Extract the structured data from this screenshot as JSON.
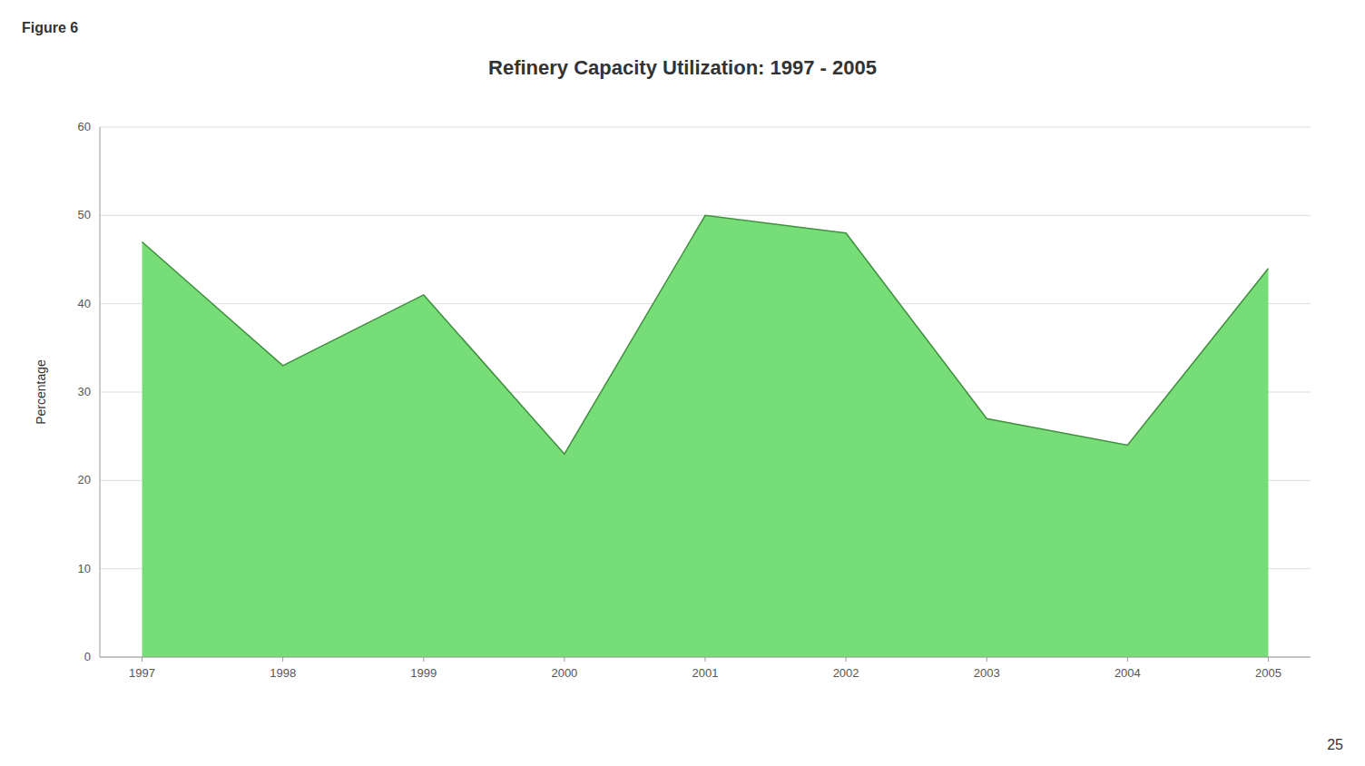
{
  "chart_data": {
    "type": "area",
    "title": "Refinery Capacity Utilization: 1997 - 2005",
    "y_label": "Percentage",
    "annotations": [
      "Figure 6",
      "25"
    ],
    "x": [
      1997,
      1998,
      1999,
      2000,
      2001,
      2002,
      2003,
      2004,
      2005
    ],
    "values": [
      47,
      33,
      41,
      23,
      50,
      48,
      27,
      24,
      44
    ],
    "color": "#77DD77",
    "xlim": [
      1996.7,
      2005.3
    ],
    "xticks": [
      1997,
      1998,
      1999,
      2000,
      2001,
      2002,
      2003,
      2004,
      2005
    ],
    "ylim": [
      0,
      60
    ],
    "yticks": [
      0,
      10,
      20,
      30,
      40,
      50,
      60
    ],
    "grid": true
  }
}
